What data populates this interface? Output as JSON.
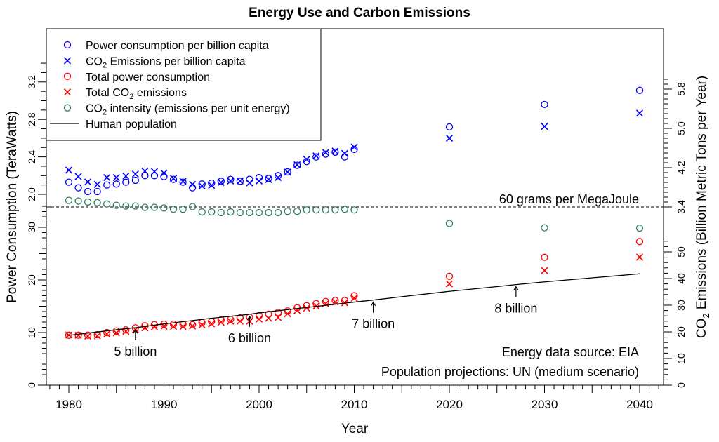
{
  "chart_data": {
    "type": "scatter",
    "title": "Energy Use and Carbon Emissions",
    "xlabel": "Year",
    "ylabel_left": "Power Consumption (TeraWatts)",
    "ylabel_right_prefix": "CO",
    "ylabel_right_sub": "2",
    "ylabel_right_suffix": " Emissions (Billion Metric Tons per Year)",
    "x_ticks": [
      1980,
      1990,
      2000,
      2010,
      2020,
      2030,
      2040
    ],
    "xlim": [
      1980,
      2040
    ],
    "left_lower_ticks": [
      "0",
      "10",
      "20",
      "30"
    ],
    "left_lower_ylim": [
      0,
      30
    ],
    "left_upper_ticks": [
      "2.0",
      "2.4",
      "2.8",
      "3.2"
    ],
    "right_lower_ticks": [
      "0",
      "10",
      "20",
      "30",
      "40",
      "50"
    ],
    "right_upper_ticks": [
      "3.4",
      "4.2",
      "5.0",
      "5.8"
    ],
    "reference_line": {
      "label": "60 grams per MegaJoule",
      "value_g_per_MJ": 60
    },
    "annotations": [
      {
        "label": "5 billion",
        "year": 1987
      },
      {
        "label": "6 billion",
        "year": 1999
      },
      {
        "label": "7 billion",
        "year": 2012
      },
      {
        "label": "8 billion",
        "year": 2027
      }
    ],
    "source_notes": [
      "Energy data source: EIA",
      "Population projections: UN (medium scenario)"
    ],
    "legend": [
      {
        "label": "Power consumption per billion capita",
        "marker": "circle",
        "color": "#0000ff"
      },
      {
        "label_pre": "CO",
        "label_sub": "2",
        "label_post": " Emissions per billion capita",
        "marker": "cross",
        "color": "#0000ff"
      },
      {
        "label": "Total power consumption",
        "marker": "circle",
        "color": "#ff0000"
      },
      {
        "label_pre": "Total CO",
        "label_sub": "2",
        "label_post": " emissions",
        "marker": "cross",
        "color": "#ff0000"
      },
      {
        "label_pre": "CO",
        "label_sub": "2",
        "label_post": " intensity (emissions per unit energy)",
        "marker": "circle",
        "color": "#2e7d5b"
      },
      {
        "label": "Human population",
        "marker": "line",
        "color": "#000000"
      }
    ],
    "legend_position": "top-left",
    "years": [
      1980,
      1981,
      1982,
      1983,
      1984,
      1985,
      1986,
      1987,
      1988,
      1989,
      1990,
      1991,
      1992,
      1993,
      1994,
      1995,
      1996,
      1997,
      1998,
      1999,
      2000,
      2001,
      2002,
      2003,
      2004,
      2005,
      2006,
      2007,
      2008,
      2009,
      2010,
      2020,
      2030,
      2040
    ],
    "series": [
      {
        "name": "Power consumption per billion capita",
        "unit": "TW per billion",
        "values": [
          2.13,
          2.07,
          2.03,
          2.03,
          2.1,
          2.11,
          2.13,
          2.15,
          2.2,
          2.2,
          2.19,
          2.16,
          2.13,
          2.07,
          2.11,
          2.12,
          2.14,
          2.16,
          2.14,
          2.16,
          2.18,
          2.17,
          2.2,
          2.24,
          2.31,
          2.35,
          2.4,
          2.43,
          2.45,
          2.4,
          2.48,
          2.72,
          2.96,
          3.11
        ]
      },
      {
        "name": "CO2 Emissions per billion capita",
        "unit": "Gt per billion",
        "values": [
          4.15,
          4.02,
          3.91,
          3.86,
          4.0,
          4.0,
          4.03,
          4.07,
          4.13,
          4.12,
          4.09,
          3.98,
          3.92,
          3.86,
          3.83,
          3.84,
          3.9,
          3.93,
          3.93,
          3.89,
          3.93,
          3.96,
          4.0,
          4.11,
          4.26,
          4.37,
          4.44,
          4.51,
          4.54,
          4.49,
          4.62,
          4.8,
          5.04,
          5.31
        ]
      },
      {
        "name": "Total power consumption",
        "unit": "TW",
        "values": [
          9.5,
          9.5,
          9.5,
          9.6,
          10.0,
          10.3,
          10.5,
          10.9,
          11.3,
          11.5,
          11.6,
          11.6,
          11.6,
          11.5,
          11.9,
          12.1,
          12.4,
          12.5,
          12.8,
          12.9,
          13.2,
          13.5,
          13.8,
          14.1,
          14.7,
          15.1,
          15.5,
          15.9,
          16.1,
          16.1,
          17.0,
          20.7,
          24.3,
          27.3
        ]
      },
      {
        "name": "Total CO2 emissions",
        "unit": "Gt/yr",
        "values": [
          18.8,
          18.7,
          18.4,
          18.5,
          19.2,
          19.6,
          20.2,
          20.8,
          21.5,
          21.9,
          22.1,
          22.0,
          22.0,
          22.2,
          22.6,
          23.0,
          23.6,
          24.0,
          24.0,
          24.0,
          24.8,
          25.1,
          25.4,
          26.8,
          28.0,
          28.9,
          29.7,
          30.6,
          31.2,
          30.9,
          32.6,
          38.0,
          43.0,
          48.0
        ]
      },
      {
        "name": "CO2 intensity",
        "unit": "g/MJ",
        "values": [
          62.0,
          61.8,
          61.5,
          61.3,
          60.9,
          60.5,
          60.3,
          60.3,
          59.9,
          59.9,
          59.7,
          59.3,
          59.3,
          60.1,
          58.5,
          58.5,
          58.3,
          58.5,
          58.3,
          58.3,
          58.3,
          58.3,
          58.3,
          58.7,
          58.7,
          59.1,
          59.1,
          59.1,
          59.1,
          59.3,
          59.1,
          55.0,
          53.7,
          53.6
        ]
      },
      {
        "name": "Human population",
        "unit": "billion",
        "type": "line",
        "years": [
          1980,
          1985,
          1987,
          1990,
          1995,
          1999,
          2000,
          2005,
          2010,
          2012,
          2015,
          2020,
          2025,
          2027,
          2030,
          2035,
          2040
        ],
        "values": [
          4.43,
          4.85,
          5.0,
          5.28,
          5.7,
          6.0,
          6.1,
          6.5,
          6.9,
          7.05,
          7.3,
          7.7,
          8.05,
          8.2,
          8.4,
          8.7,
          9.0
        ]
      }
    ]
  }
}
